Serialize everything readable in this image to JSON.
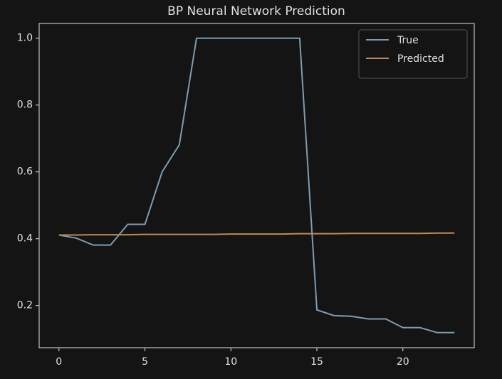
{
  "chart_data": {
    "type": "line",
    "title": "BP Neural Network Prediction",
    "x": [
      0,
      1,
      2,
      3,
      4,
      5,
      6,
      7,
      8,
      9,
      10,
      11,
      12,
      13,
      14,
      15,
      16,
      17,
      18,
      19,
      20,
      21,
      22,
      23
    ],
    "series": [
      {
        "name": "True",
        "color": "#7b9db3",
        "values": [
          0.411,
          0.402,
          0.381,
          0.381,
          0.443,
          0.443,
          0.6,
          0.681,
          1.0,
          1.0,
          1.0,
          1.0,
          1.0,
          1.0,
          1.0,
          0.187,
          0.17,
          0.168,
          0.16,
          0.16,
          0.134,
          0.134,
          0.119,
          0.119
        ]
      },
      {
        "name": "Predicted",
        "color": "#c08a52",
        "values": [
          0.411,
          0.411,
          0.412,
          0.412,
          0.412,
          0.413,
          0.413,
          0.413,
          0.413,
          0.413,
          0.414,
          0.414,
          0.414,
          0.414,
          0.415,
          0.415,
          0.415,
          0.416,
          0.416,
          0.416,
          0.416,
          0.416,
          0.417,
          0.417
        ]
      }
    ],
    "xlim": [
      -1.15,
      24.15
    ],
    "ylim": [
      0.0739,
      1.0441
    ],
    "xticks": [
      0,
      5,
      10,
      15,
      20
    ],
    "yticks": [
      0.2,
      0.4,
      0.6,
      0.8,
      {
        "value": 1,
        "label": "1.0"
      }
    ],
    "grid": false,
    "legend": "upper right"
  }
}
